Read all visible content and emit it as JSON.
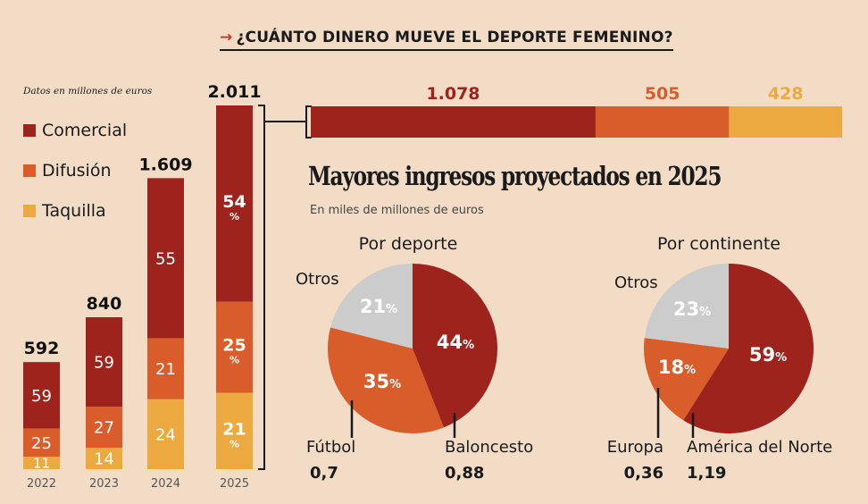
{
  "headline": {
    "arrow": "→",
    "text": "¿CUÁNTO DINERO MUEVE EL DEPORTE FEMENINO?"
  },
  "colors": {
    "comercial": "#9e231c",
    "difusion": "#d95d2b",
    "taquilla": "#eba93f",
    "otros": "#cccccc",
    "background": "#f3dcc6"
  },
  "chart_data": [
    {
      "type": "bar",
      "stacked": true,
      "note": "Datos en millones de euros",
      "categories": [
        "2022",
        "2023",
        "2024",
        "2025"
      ],
      "totals": [
        "592",
        "840",
        "1.609",
        "2.011"
      ],
      "total_values": [
        592,
        840,
        1609,
        2011
      ],
      "legend": [
        "Comercial",
        "Difusión",
        "Taquilla"
      ],
      "legend_position": "top-left",
      "series": [
        {
          "name": "Comercial",
          "percent": [
            59,
            59,
            55,
            54
          ],
          "labels": [
            "59",
            "59",
            "55",
            "54"
          ]
        },
        {
          "name": "Difusión",
          "percent": [
            25,
            27,
            21,
            25
          ],
          "labels": [
            "25",
            "27",
            "21",
            "25"
          ]
        },
        {
          "name": "Taquilla",
          "percent": [
            11,
            14,
            24,
            21
          ],
          "labels": [
            "11",
            "14",
            "24",
            "21"
          ]
        }
      ],
      "percent_suffix_2025": "%"
    },
    {
      "type": "bar",
      "orientation": "horizontal",
      "stacked": true,
      "category": "2025",
      "series": [
        {
          "name": "Comercial",
          "value": 1078,
          "label": "1.078"
        },
        {
          "name": "Difusión",
          "value": 505,
          "label": "505"
        },
        {
          "name": "Taquilla",
          "value": 428,
          "label": "428"
        }
      ]
    },
    {
      "type": "pie",
      "title": "Por deporte",
      "slices": [
        {
          "name": "Baloncesto",
          "percent": 44,
          "value": "0,88"
        },
        {
          "name": "Fútbol",
          "percent": 35,
          "value": "0,7"
        },
        {
          "name": "Otros",
          "percent": 21,
          "value": ""
        }
      ]
    },
    {
      "type": "pie",
      "title": "Por continente",
      "slices": [
        {
          "name": "América del Norte",
          "percent": 59,
          "value": "1,19"
        },
        {
          "name": "Europa",
          "percent": 18,
          "value": "0,36"
        },
        {
          "name": "Otros",
          "percent": 23,
          "value": ""
        }
      ]
    }
  ],
  "section2": {
    "title": "Mayores ingresos proyectados en 2025",
    "subtitle": "En miles de millones de euros"
  }
}
